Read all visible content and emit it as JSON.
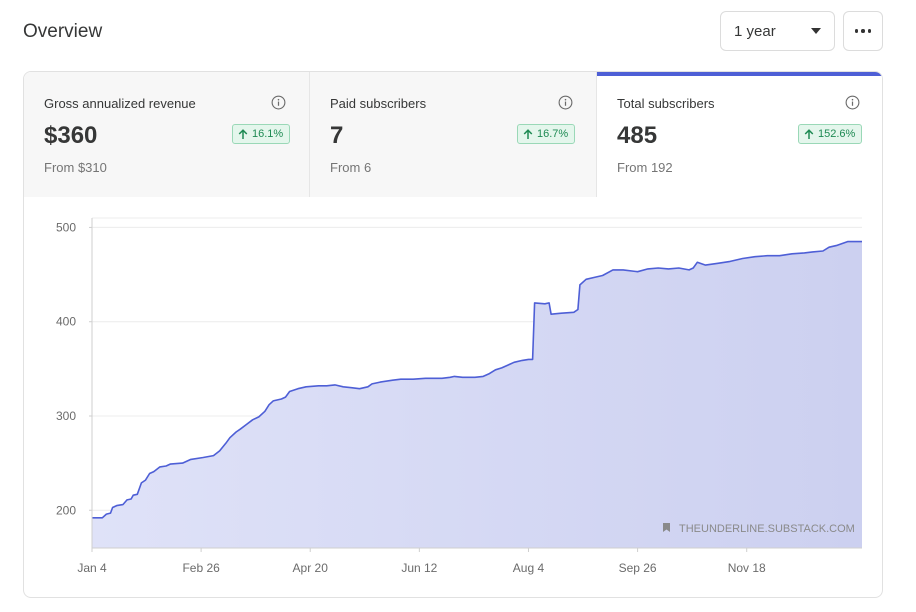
{
  "header": {
    "title": "Overview",
    "range_value": "1 year",
    "caret_icon": "caret-down-icon",
    "more_icon": "more-horizontal-icon"
  },
  "stats": [
    {
      "label": "Gross annualized revenue",
      "value": "$360",
      "change": "16.1%",
      "from": "From $310",
      "info_icon": "info-icon"
    },
    {
      "label": "Paid subscribers",
      "value": "7",
      "change": "16.7%",
      "from": "From 6",
      "info_icon": "info-icon"
    },
    {
      "label": "Total subscribers",
      "value": "485",
      "change": "152.6%",
      "from": "From 192",
      "info_icon": "info-icon",
      "selected": true
    }
  ],
  "colors": {
    "accent": "#4e5fd6",
    "area_fill": "#d6d9f6",
    "badge_green": "#1e8a53",
    "badge_bg": "#e4f6ec"
  },
  "chart_data": {
    "type": "area",
    "title": "",
    "xlabel": "",
    "ylabel": "",
    "ylim": [
      160,
      510
    ],
    "grid": true,
    "yticks": [
      200,
      300,
      400,
      500
    ],
    "xtick_labels": [
      {
        "label": "Jan 4",
        "day": 0
      },
      {
        "label": "Feb 26",
        "day": 53
      },
      {
        "label": "Apr 20",
        "day": 106
      },
      {
        "label": "Jun 12",
        "day": 159
      },
      {
        "label": "Aug 4",
        "day": 212
      },
      {
        "label": "Sep 26",
        "day": 265
      },
      {
        "label": "Nov 18",
        "day": 318
      }
    ],
    "watermark": "THEUNDERLINE.SUBSTACK.COM",
    "watermark_icon": "bookmark-icon",
    "series": [
      {
        "values": [
          [
            0,
            192
          ],
          [
            5,
            192
          ],
          [
            7,
            196
          ],
          [
            9,
            197
          ],
          [
            10,
            203
          ],
          [
            12,
            205
          ],
          [
            15,
            206
          ],
          [
            17,
            211
          ],
          [
            19,
            212
          ],
          [
            20,
            216
          ],
          [
            22,
            217
          ],
          [
            24,
            229
          ],
          [
            26,
            232
          ],
          [
            28,
            239
          ],
          [
            30,
            241
          ],
          [
            33,
            246
          ],
          [
            36,
            247
          ],
          [
            38,
            249
          ],
          [
            44,
            250
          ],
          [
            48,
            254
          ],
          [
            54,
            256
          ],
          [
            59,
            258
          ],
          [
            62,
            263
          ],
          [
            65,
            271
          ],
          [
            67,
            277
          ],
          [
            70,
            283
          ],
          [
            72,
            286
          ],
          [
            75,
            291
          ],
          [
            78,
            296
          ],
          [
            81,
            299
          ],
          [
            84,
            305
          ],
          [
            86,
            312
          ],
          [
            88,
            316
          ],
          [
            92,
            318
          ],
          [
            94,
            320
          ],
          [
            96,
            326
          ],
          [
            100,
            329
          ],
          [
            104,
            331
          ],
          [
            110,
            332
          ],
          [
            114,
            332
          ],
          [
            118,
            333
          ],
          [
            122,
            331
          ],
          [
            126,
            330
          ],
          [
            130,
            329
          ],
          [
            134,
            331
          ],
          [
            136,
            334
          ],
          [
            140,
            336
          ],
          [
            146,
            338
          ],
          [
            150,
            339
          ],
          [
            156,
            339
          ],
          [
            162,
            340
          ],
          [
            170,
            340
          ],
          [
            174,
            341
          ],
          [
            176,
            342
          ],
          [
            180,
            341
          ],
          [
            186,
            341
          ],
          [
            190,
            342
          ],
          [
            193,
            345
          ],
          [
            196,
            349
          ],
          [
            199,
            351
          ],
          [
            202,
            354
          ],
          [
            205,
            357
          ],
          [
            209,
            359
          ],
          [
            212,
            360
          ],
          [
            214,
            360
          ],
          [
            215,
            420
          ],
          [
            220,
            419
          ],
          [
            222,
            420
          ],
          [
            223,
            408
          ],
          [
            228,
            409
          ],
          [
            234,
            410
          ],
          [
            236,
            413
          ],
          [
            237,
            439
          ],
          [
            240,
            445
          ],
          [
            244,
            447
          ],
          [
            248,
            449
          ],
          [
            253,
            455
          ],
          [
            258,
            455
          ],
          [
            265,
            453
          ],
          [
            270,
            456
          ],
          [
            275,
            457
          ],
          [
            280,
            456
          ],
          [
            285,
            457
          ],
          [
            290,
            455
          ],
          [
            292,
            457
          ],
          [
            294,
            463
          ],
          [
            298,
            460
          ],
          [
            304,
            462
          ],
          [
            310,
            464
          ],
          [
            316,
            467
          ],
          [
            322,
            469
          ],
          [
            328,
            470
          ],
          [
            334,
            470
          ],
          [
            340,
            472
          ],
          [
            346,
            473
          ],
          [
            350,
            474
          ],
          [
            355,
            475
          ],
          [
            358,
            479
          ],
          [
            362,
            481
          ],
          [
            367,
            485
          ],
          [
            372,
            485
          ],
          [
            374,
            485
          ]
        ]
      }
    ]
  }
}
